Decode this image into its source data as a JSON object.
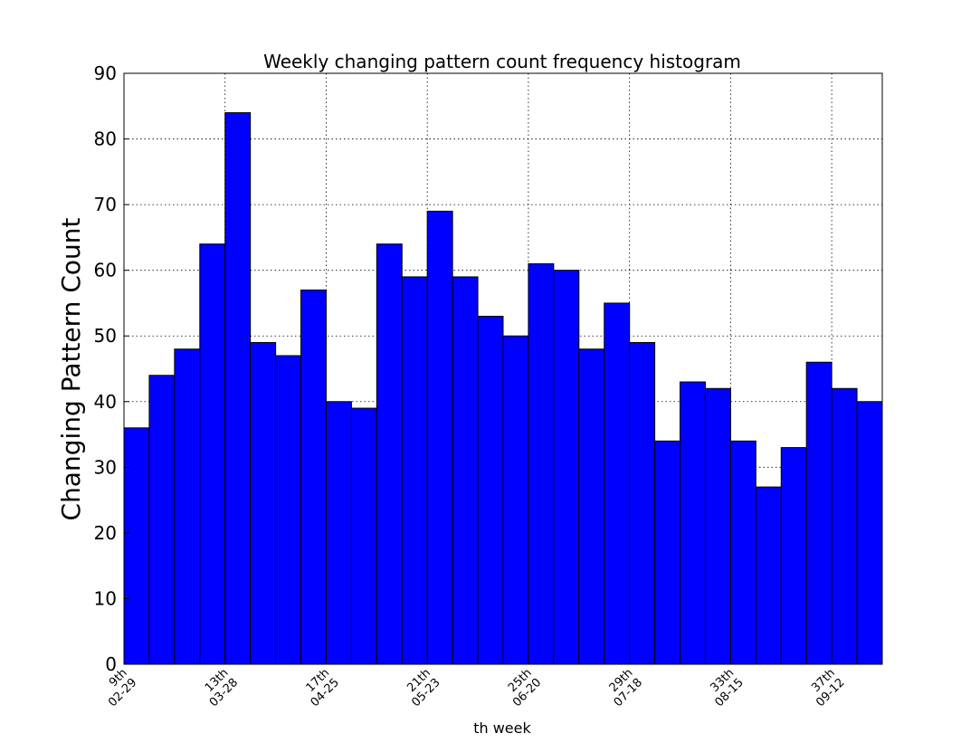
{
  "chart_data": {
    "type": "bar",
    "title": "Weekly changing pattern count frequency histogram",
    "xlabel": "th week",
    "ylabel": "Changing Pattern Count",
    "ylim": [
      0,
      90
    ],
    "xlim": [
      9,
      39
    ],
    "yticks": [
      0,
      10,
      20,
      30,
      40,
      50,
      60,
      70,
      80,
      90
    ],
    "xticks": [
      {
        "x": 9,
        "line1": "9th",
        "line2": "02-29"
      },
      {
        "x": 13,
        "line1": "13th",
        "line2": "03-28"
      },
      {
        "x": 17,
        "line1": "17th",
        "line2": "04-25"
      },
      {
        "x": 21,
        "line1": "21th",
        "line2": "05-23"
      },
      {
        "x": 25,
        "line1": "25th",
        "line2": "06-20"
      },
      {
        "x": 29,
        "line1": "29th",
        "line2": "07-18"
      },
      {
        "x": 33,
        "line1": "33th",
        "line2": "08-15"
      },
      {
        "x": 37,
        "line1": "37th",
        "line2": "09-12"
      }
    ],
    "grid": true,
    "bar_color": "#0000ff",
    "bars": [
      {
        "x": 10,
        "value": 36
      },
      {
        "x": 11,
        "value": 44
      },
      {
        "x": 12,
        "value": 48
      },
      {
        "x": 13,
        "value": 64
      },
      {
        "x": 14,
        "value": 84
      },
      {
        "x": 15,
        "value": 49
      },
      {
        "x": 16,
        "value": 47
      },
      {
        "x": 17,
        "value": 57
      },
      {
        "x": 18,
        "value": 40
      },
      {
        "x": 19,
        "value": 39
      },
      {
        "x": 20,
        "value": 64
      },
      {
        "x": 21,
        "value": 59
      },
      {
        "x": 22,
        "value": 69
      },
      {
        "x": 23,
        "value": 59
      },
      {
        "x": 24,
        "value": 53
      },
      {
        "x": 25,
        "value": 50
      },
      {
        "x": 26,
        "value": 61
      },
      {
        "x": 27,
        "value": 60
      },
      {
        "x": 28,
        "value": 48
      },
      {
        "x": 29,
        "value": 55
      },
      {
        "x": 30,
        "value": 49
      },
      {
        "x": 31,
        "value": 34
      },
      {
        "x": 32,
        "value": 43
      },
      {
        "x": 33,
        "value": 42
      },
      {
        "x": 34,
        "value": 34
      },
      {
        "x": 35,
        "value": 27
      },
      {
        "x": 36,
        "value": 33
      },
      {
        "x": 37,
        "value": 46
      },
      {
        "x": 38,
        "value": 42
      },
      {
        "x": 39,
        "value": 40
      }
    ]
  }
}
